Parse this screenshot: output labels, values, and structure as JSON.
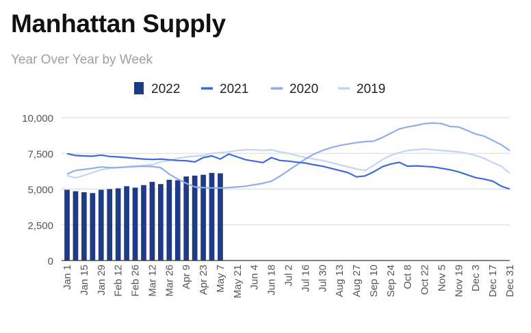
{
  "header": {
    "title": "Manhattan Supply",
    "subtitle": "Year Over Year by Week"
  },
  "chart_data": {
    "type": "bar+line",
    "title": "Manhattan Supply",
    "subtitle": "Year Over Year by Week",
    "xlabel": "",
    "ylabel": "",
    "ylim": [
      0,
      10000
    ],
    "yticks": [
      0,
      2500,
      5000,
      7500,
      10000
    ],
    "ytick_labels": [
      "0",
      "2,500",
      "5,000",
      "7,500",
      "10,000"
    ],
    "grid": true,
    "legend": "top-center",
    "num_weeks": 53,
    "xtick_labels": [
      "Jan 1",
      "Jan 15",
      "Jan 29",
      "Feb 12",
      "Feb 26",
      "Mar 12",
      "Mar 26",
      "Apr 9",
      "Apr 23",
      "May 7",
      "May 21",
      "Jun 4",
      "Jun 18",
      "Jul 2",
      "Jul 16",
      "Jul 30",
      "Aug 13",
      "Aug 27",
      "Sep 10",
      "Sep 24",
      "Oct 8",
      "Oct 22",
      "Nov 5",
      "Nov 19",
      "Dec 3",
      "Dec 17",
      "Dec 31"
    ],
    "series": [
      {
        "name": "2022",
        "kind": "bar",
        "color": "#1f3b83",
        "values": [
          4950,
          4850,
          4780,
          4720,
          4950,
          5000,
          5050,
          5200,
          5100,
          5280,
          5500,
          5350,
          5650,
          5620,
          5880,
          5940,
          6000,
          6130,
          6100
        ]
      },
      {
        "name": "2021",
        "kind": "line",
        "color": "#3c6ad6",
        "values": [
          7480,
          7350,
          7320,
          7300,
          7380,
          7280,
          7250,
          7200,
          7150,
          7100,
          7070,
          7100,
          7050,
          7000,
          6980,
          6900,
          7200,
          7320,
          7100,
          7450,
          7250,
          7050,
          6950,
          6850,
          7200,
          7000,
          6950,
          6880,
          6820,
          6700,
          6600,
          6450,
          6300,
          6150,
          5850,
          5920,
          6200,
          6550,
          6750,
          6870,
          6600,
          6620,
          6590,
          6550,
          6450,
          6350,
          6200,
          6000,
          5800,
          5700,
          5550,
          5200,
          5000
        ]
      },
      {
        "name": "2020",
        "kind": "line",
        "color": "#8fadec",
        "values": [
          6050,
          6300,
          6380,
          6450,
          6550,
          6500,
          6500,
          6550,
          6580,
          6600,
          6580,
          6500,
          6050,
          5700,
          5400,
          5150,
          5100,
          5080,
          5080,
          5100,
          5150,
          5200,
          5300,
          5400,
          5550,
          5900,
          6300,
          6700,
          7100,
          7450,
          7700,
          7900,
          8050,
          8150,
          8250,
          8320,
          8350,
          8600,
          8900,
          9200,
          9350,
          9450,
          9580,
          9620,
          9580,
          9380,
          9350,
          9100,
          8850,
          8700,
          8400,
          8100,
          7700
        ]
      },
      {
        "name": "2019",
        "kind": "line",
        "color": "#c5d4f4",
        "values": [
          5950,
          5780,
          5950,
          6150,
          6350,
          6450,
          6520,
          6550,
          6600,
          6650,
          6700,
          6900,
          7000,
          7150,
          7250,
          7300,
          7350,
          7500,
          7550,
          7600,
          7700,
          7750,
          7750,
          7700,
          7750,
          7600,
          7500,
          7350,
          7200,
          7100,
          7000,
          6850,
          6700,
          6550,
          6400,
          6300,
          6650,
          7050,
          7350,
          7550,
          7700,
          7750,
          7800,
          7750,
          7700,
          7650,
          7600,
          7500,
          7350,
          7150,
          6850,
          6600,
          6100
        ]
      }
    ]
  }
}
